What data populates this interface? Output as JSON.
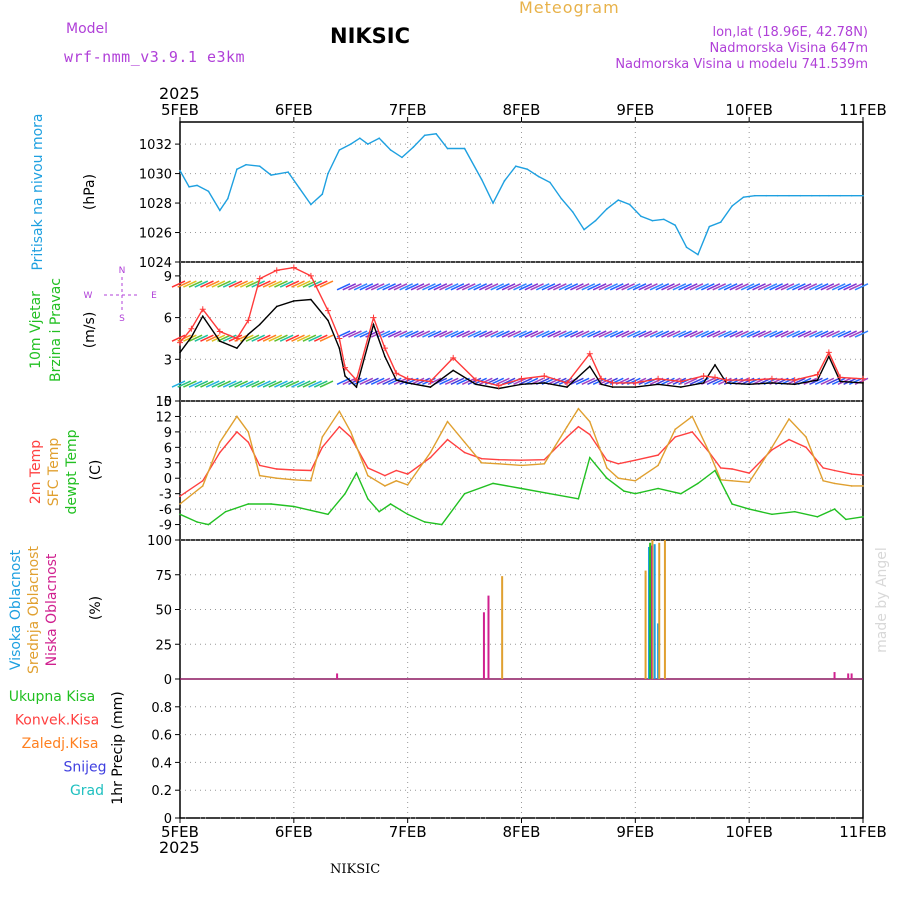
{
  "header": {
    "model_label": "Model",
    "model_name": "wrf-nmm_v3.9.1 e3km",
    "title": "NIKSIC",
    "meteogram": "Meteogram",
    "lonlat": "lon,lat (18.96E, 42.78N)",
    "altitude": "Nadmorska Visina 647m",
    "model_altitude": "Nadmorska Visina u modelu 741.539m",
    "year_top": "2025",
    "year_bottom": "2025",
    "bottom_name": "NIKSIC",
    "watermark": "made by Angel"
  },
  "colors": {
    "purple": "#b040d8",
    "pressure": "#1ea0e0",
    "title": "#000000",
    "meteogram": "#e8b24a"
  },
  "chart_data": [
    {
      "type": "line",
      "id": "pressure",
      "title": "Pritisak na nivou mora",
      "ylabel": "Pritisak na nivou mora",
      "unit": "(hPa)",
      "ylim": [
        1024,
        1033.5
      ],
      "yticks": [
        1024,
        1026,
        1028,
        1030,
        1032
      ],
      "x_categories": [
        "5FEB",
        "6FEB",
        "7FEB",
        "8FEB",
        "9FEB",
        "10FEB",
        "11FEB"
      ],
      "series": [
        {
          "name": "Pritisak na nivou mora",
          "color": "#1ea0e0",
          "x": [
            0,
            0.08,
            0.15,
            0.25,
            0.35,
            0.42,
            0.5,
            0.58,
            0.7,
            0.8,
            0.95,
            1.05,
            1.15,
            1.25,
            1.3,
            1.4,
            1.5,
            1.58,
            1.65,
            1.75,
            1.85,
            1.95,
            2.05,
            2.15,
            2.25,
            2.35,
            2.5,
            2.65,
            2.75,
            2.85,
            2.95,
            3.05,
            3.15,
            3.25,
            3.35,
            3.45,
            3.55,
            3.65,
            3.75,
            3.85,
            3.95,
            4.05,
            4.15,
            4.25,
            4.35,
            4.45,
            4.55,
            4.65,
            4.75,
            4.85,
            4.95,
            5.05,
            5.15,
            5.25,
            5.35,
            5.45,
            5.55,
            5.62,
            5.7,
            5.8,
            5.9,
            6.0
          ],
          "values": [
            1030.2,
            1029.1,
            1029.2,
            1028.8,
            1027.5,
            1028.3,
            1030.3,
            1030.6,
            1030.5,
            1029.9,
            1030.1,
            1029.0,
            1027.9,
            1028.6,
            1030.0,
            1031.6,
            1032.0,
            1032.4,
            1032.0,
            1032.4,
            1031.6,
            1031.1,
            1031.8,
            1032.6,
            1032.7,
            1031.7,
            1031.7,
            1029.6,
            1028.0,
            1029.5,
            1030.5,
            1030.3,
            1029.8,
            1029.4,
            1028.3,
            1027.4,
            1026.2,
            1026.8,
            1027.6,
            1028.2,
            1027.9,
            1027.1,
            1026.8,
            1026.9,
            1026.5,
            1025.0,
            1024.5,
            1026.4,
            1026.7,
            1027.8,
            1028.4,
            1028.5,
            1028.5,
            1028.5,
            1028.5,
            1028.5,
            1028.5,
            1028.5,
            1028.5,
            1028.5,
            1028.5,
            1028.5
          ]
        }
      ]
    },
    {
      "type": "line",
      "id": "wind",
      "title": "10m Vjetar Brzina i Pravac",
      "ylabel_lines": [
        "10m Vjetar",
        "Brzina i Pravac"
      ],
      "unit": "(m/s)",
      "compass": [
        "N",
        "S",
        "W",
        "E"
      ],
      "ylim": [
        0,
        10
      ],
      "yticks": [
        0,
        3,
        6,
        9
      ],
      "series": [
        {
          "name": "10m wind speed",
          "color": "#000000",
          "x": [
            0,
            0.1,
            0.2,
            0.35,
            0.5,
            0.6,
            0.7,
            0.85,
            1.0,
            1.15,
            1.3,
            1.4,
            1.45,
            1.55,
            1.7,
            1.8,
            1.9,
            2.0,
            2.2,
            2.4,
            2.6,
            2.8,
            3.0,
            3.2,
            3.4,
            3.6,
            3.7,
            3.8,
            4.0,
            4.2,
            4.4,
            4.6,
            4.7,
            4.8,
            5.0,
            5.2,
            5.4,
            5.6,
            5.7,
            5.8,
            6.0
          ],
          "values": [
            3.5,
            4.6,
            6.1,
            4.3,
            3.8,
            4.8,
            5.5,
            6.8,
            7.2,
            7.3,
            5.8,
            3.8,
            1.8,
            1.0,
            5.5,
            3.2,
            1.5,
            1.3,
            1.0,
            2.2,
            1.2,
            0.9,
            1.2,
            1.3,
            1.0,
            2.5,
            1.2,
            1.0,
            1.0,
            1.2,
            1.0,
            1.3,
            2.6,
            1.3,
            1.2,
            1.3,
            1.2,
            1.5,
            3.2,
            1.4,
            1.3
          ]
        },
        {
          "name": "gusts",
          "color": "#ff3a3a",
          "x": [
            0,
            0.1,
            0.2,
            0.35,
            0.5,
            0.6,
            0.7,
            0.85,
            1.0,
            1.15,
            1.3,
            1.4,
            1.45,
            1.55,
            1.7,
            1.8,
            1.9,
            2.0,
            2.2,
            2.4,
            2.6,
            2.8,
            3.0,
            3.2,
            3.4,
            3.6,
            3.7,
            3.8,
            4.0,
            4.2,
            4.4,
            4.6,
            4.7,
            4.8,
            5.0,
            5.2,
            5.4,
            5.6,
            5.7,
            5.8,
            6.0
          ],
          "values": [
            4.2,
            5.2,
            6.6,
            5.0,
            4.5,
            5.8,
            8.8,
            9.4,
            9.6,
            9.0,
            6.5,
            4.5,
            2.4,
            1.5,
            6.0,
            3.8,
            2.0,
            1.6,
            1.4,
            3.1,
            1.5,
            1.1,
            1.6,
            1.8,
            1.3,
            3.4,
            1.6,
            1.3,
            1.3,
            1.6,
            1.4,
            1.8,
            1.7,
            1.5,
            1.5,
            1.6,
            1.5,
            1.9,
            3.5,
            1.7,
            1.6
          ]
        }
      ]
    },
    {
      "type": "line",
      "id": "temperature",
      "title": "2m Temp / SFC Temp / dewpt Temp",
      "ylabel_lines": [
        "2m Temp",
        "SFC Temp",
        "dewpt Temp"
      ],
      "unit": "(C)",
      "ylim": [
        -12,
        15
      ],
      "yticks": [
        -9,
        -6,
        -3,
        0,
        3,
        6,
        9,
        12,
        15
      ],
      "series": [
        {
          "name": "2m Temp",
          "color": "#ff4040",
          "x": [
            0,
            0.2,
            0.35,
            0.5,
            0.6,
            0.7,
            0.85,
            1.0,
            1.15,
            1.25,
            1.4,
            1.5,
            1.65,
            1.8,
            1.9,
            2.0,
            2.2,
            2.35,
            2.5,
            2.65,
            2.8,
            3.0,
            3.2,
            3.4,
            3.5,
            3.6,
            3.75,
            3.85,
            4.0,
            4.2,
            4.35,
            4.5,
            4.65,
            4.75,
            4.85,
            5.0,
            5.2,
            5.35,
            5.5,
            5.65,
            5.75,
            5.9,
            6.0
          ],
          "values": [
            -3.5,
            -0.5,
            5.0,
            9.0,
            7.0,
            2.5,
            1.8,
            1.6,
            1.5,
            6.0,
            10.0,
            8.0,
            2.0,
            0.5,
            1.5,
            0.8,
            4.0,
            7.5,
            5.0,
            3.8,
            3.6,
            3.5,
            3.6,
            8.0,
            10.0,
            8.5,
            3.5,
            2.8,
            3.5,
            4.5,
            8.0,
            9.0,
            5.0,
            2.0,
            1.8,
            1.0,
            5.5,
            7.5,
            6.0,
            2.0,
            1.5,
            0.8,
            0.6
          ]
        },
        {
          "name": "SFC Temp",
          "color": "#e0a030",
          "x": [
            0,
            0.2,
            0.35,
            0.5,
            0.6,
            0.7,
            0.85,
            1.0,
            1.15,
            1.25,
            1.4,
            1.5,
            1.65,
            1.8,
            1.9,
            2.0,
            2.2,
            2.35,
            2.5,
            2.65,
            2.8,
            3.0,
            3.2,
            3.4,
            3.5,
            3.6,
            3.75,
            3.85,
            4.0,
            4.2,
            4.35,
            4.5,
            4.65,
            4.75,
            4.85,
            5.0,
            5.2,
            5.35,
            5.5,
            5.65,
            5.75,
            5.9,
            6.0
          ],
          "values": [
            -5.0,
            -1.5,
            7.0,
            12.0,
            9.0,
            0.5,
            0.0,
            -0.3,
            -0.5,
            8.0,
            13.0,
            9.0,
            0.5,
            -1.5,
            -0.5,
            -1.3,
            5.0,
            11.0,
            7.0,
            3.0,
            2.8,
            2.5,
            2.8,
            10.0,
            13.5,
            11.0,
            2.0,
            0.0,
            -0.5,
            2.5,
            9.5,
            12.0,
            5.0,
            -0.3,
            -0.5,
            -0.8,
            6.0,
            11.5,
            8.0,
            -0.5,
            -1.0,
            -1.5,
            -1.5
          ]
        },
        {
          "name": "dewpt Temp",
          "color": "#22c022",
          "x": [
            0,
            0.15,
            0.25,
            0.4,
            0.6,
            0.8,
            1.0,
            1.2,
            1.3,
            1.45,
            1.55,
            1.65,
            1.75,
            1.85,
            2.0,
            2.15,
            2.3,
            2.5,
            2.75,
            3.0,
            3.25,
            3.5,
            3.6,
            3.75,
            3.9,
            4.0,
            4.2,
            4.4,
            4.55,
            4.7,
            4.85,
            5.0,
            5.2,
            5.4,
            5.6,
            5.75,
            5.85,
            6.0
          ],
          "values": [
            -7.0,
            -8.5,
            -9.0,
            -6.5,
            -5.0,
            -5.0,
            -5.5,
            -6.5,
            -7.0,
            -3.0,
            1.0,
            -4.0,
            -6.5,
            -5.0,
            -7.0,
            -8.5,
            -9.0,
            -3.0,
            -1.0,
            -2.0,
            -3.0,
            -4.0,
            4.0,
            0.0,
            -2.5,
            -3.0,
            -2.0,
            -3.0,
            -1.0,
            1.5,
            -5.0,
            -6.0,
            -7.0,
            -6.5,
            -7.5,
            -6.0,
            -8.0,
            -7.5
          ]
        }
      ]
    },
    {
      "type": "bar",
      "id": "cloud",
      "title": "Visoka / Srednja / Niska Oblacnost",
      "ylabel_lines": [
        "Visoka Oblacnost",
        "Srednja Oblacnost",
        "Niska Oblacnost"
      ],
      "unit": "(%)",
      "ylim": [
        0,
        100
      ],
      "yticks": [
        0,
        25,
        50,
        75,
        100
      ],
      "series": [
        {
          "name": "Visoka Oblacnost",
          "color": "#1ea0e0",
          "x": [
            4.12,
            4.17,
            4.2
          ],
          "values": [
            95,
            97,
            40
          ]
        },
        {
          "name": "Srednja Oblacnost",
          "color": "#e0a030",
          "x": [
            2.83,
            4.09,
            4.15,
            4.21,
            4.26
          ],
          "values": [
            74,
            78,
            100,
            98,
            100
          ]
        },
        {
          "name": "Niska Oblacnost",
          "color": "#d0208f",
          "x": [
            1.38,
            2.67,
            2.71,
            4.14,
            5.75,
            5.87,
            5.9
          ],
          "values": [
            4,
            48,
            60,
            96,
            5,
            4,
            4
          ]
        },
        {
          "name": "green",
          "color": "#22c022",
          "x": [
            4.13
          ],
          "values": [
            98
          ]
        }
      ]
    },
    {
      "type": "bar",
      "id": "precip",
      "title": "1hr Precip",
      "ylabel_lines": [
        "1hr Precip (mm)"
      ],
      "unit": "",
      "legend": [
        "Ukupna Kisa",
        "Konvek.Kisa",
        "Zaledj.Kisa",
        "Snijeg",
        "Grad"
      ],
      "legend_colors": [
        "#22c022",
        "#ff4040",
        "#ff8020",
        "#4040e0",
        "#20c0c0"
      ],
      "ylim": [
        0,
        1.0
      ],
      "yticks": [
        0,
        0.2,
        0.4,
        0.6,
        0.8
      ],
      "series": []
    }
  ]
}
